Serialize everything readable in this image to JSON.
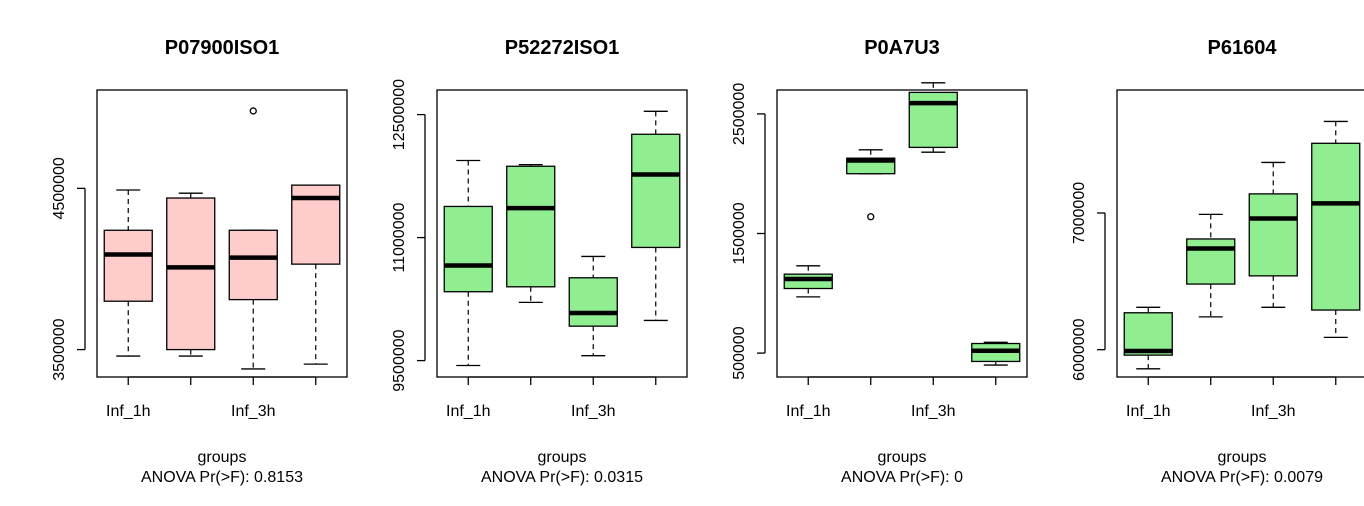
{
  "chart_data": [
    {
      "type": "box",
      "title": "P07900ISO1",
      "xlabel": "groups",
      "footnote": "ANOVA Pr(>F): 0.8153",
      "ylim": [
        3330000,
        5110000
      ],
      "yticks": [
        3500000,
        4500000
      ],
      "categories": [
        "Inf_1h",
        "",
        "Inf_3h",
        ""
      ],
      "fill": "#ffcccc",
      "boxes": [
        {
          "min": 3460000,
          "q1": 3800000,
          "median": 4090000,
          "q3": 4240000,
          "max": 4490000,
          "outliers": []
        },
        {
          "min": 3460000,
          "q1": 3500000,
          "median": 4010000,
          "q3": 4440000,
          "max": 4470000,
          "outliers": []
        },
        {
          "min": 3380000,
          "q1": 3810000,
          "median": 4070000,
          "q3": 4240000,
          "max": 4240000,
          "outliers": [
            4980000
          ]
        },
        {
          "min": 3410000,
          "q1": 4030000,
          "median": 4440000,
          "q3": 4520000,
          "max": 4520000,
          "outliers": []
        }
      ]
    },
    {
      "type": "box",
      "title": "P52272ISO1",
      "xlabel": "groups",
      "footnote": "ANOVA Pr(>F): 0.0315",
      "ylim": [
        9300000,
        12800000
      ],
      "yticks": [
        9500000,
        11000000,
        12500000
      ],
      "categories": [
        "Inf_1h",
        "",
        "Inf_3h",
        ""
      ],
      "fill": "#90ee90",
      "boxes": [
        {
          "min": 9440000,
          "q1": 10340000,
          "median": 10660000,
          "q3": 11380000,
          "max": 11940000,
          "outliers": []
        },
        {
          "min": 10210000,
          "q1": 10400000,
          "median": 11360000,
          "q3": 11870000,
          "max": 11890000,
          "outliers": []
        },
        {
          "min": 9560000,
          "q1": 9920000,
          "median": 10080000,
          "q3": 10510000,
          "max": 10770000,
          "outliers": []
        },
        {
          "min": 9990000,
          "q1": 10880000,
          "median": 11770000,
          "q3": 12260000,
          "max": 12540000,
          "outliers": []
        }
      ]
    },
    {
      "type": "box",
      "title": "P0A7U3",
      "xlabel": "groups",
      "footnote": "ANOVA Pr(>F): 0",
      "ylim": [
        300000,
        2700000
      ],
      "yticks": [
        500000,
        1500000,
        2500000
      ],
      "categories": [
        "Inf_1h",
        "",
        "Inf_3h",
        ""
      ],
      "fill": "#90ee90",
      "boxes": [
        {
          "min": 970000,
          "q1": 1040000,
          "median": 1120000,
          "q3": 1160000,
          "max": 1230000,
          "outliers": []
        },
        {
          "min": 2000000,
          "q1": 2000000,
          "median": 2110000,
          "q3": 2130000,
          "max": 2200000,
          "outliers": [
            1640000
          ]
        },
        {
          "min": 2180000,
          "q1": 2220000,
          "median": 2590000,
          "q3": 2680000,
          "max": 2760000,
          "outliers": []
        },
        {
          "min": 400000,
          "q1": 430000,
          "median": 520000,
          "q3": 580000,
          "max": 590000,
          "outliers": []
        }
      ]
    },
    {
      "type": "box",
      "title": "P61604",
      "xlabel": "groups",
      "footnote": "ANOVA Pr(>F): 0.0079",
      "ylim": [
        5800000,
        7900000
      ],
      "yticks": [
        6000000,
        7000000
      ],
      "categories": [
        "Inf_1h",
        "",
        "Inf_3h",
        ""
      ],
      "fill": "#90ee90",
      "boxes": [
        {
          "min": 5860000,
          "q1": 5960000,
          "median": 5990000,
          "q3": 6270000,
          "max": 6310000,
          "outliers": []
        },
        {
          "min": 6240000,
          "q1": 6480000,
          "median": 6740000,
          "q3": 6810000,
          "max": 6990000,
          "outliers": []
        },
        {
          "min": 6310000,
          "q1": 6540000,
          "median": 6960000,
          "q3": 7140000,
          "max": 7370000,
          "outliers": []
        },
        {
          "min": 6090000,
          "q1": 6290000,
          "median": 7070000,
          "q3": 7510000,
          "max": 7670000,
          "outliers": []
        }
      ]
    }
  ]
}
